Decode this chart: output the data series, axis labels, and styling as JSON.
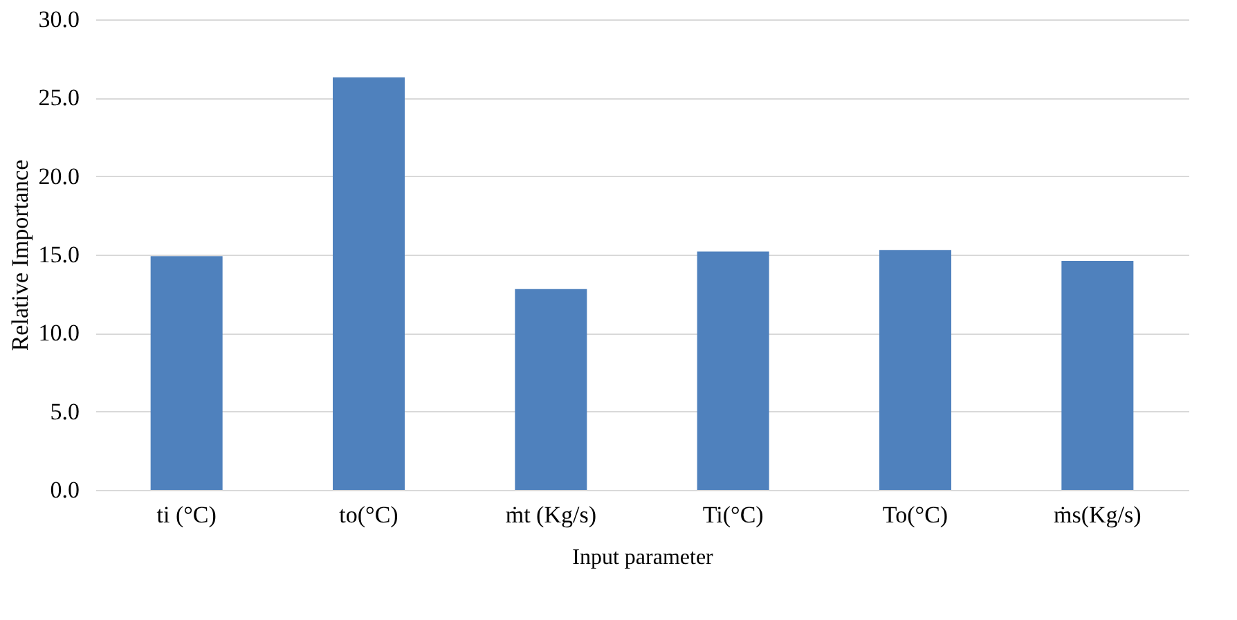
{
  "chart_data": {
    "type": "bar",
    "xlabel": "Input parameter",
    "ylabel": "Relative Importance",
    "categories": [
      "ti (°C)",
      "to(°C)",
      "ṁt (Kg/s)",
      "Ti(°C)",
      "To(°C)",
      "ṁs(Kg/s)"
    ],
    "values": [
      14.9,
      26.3,
      12.8,
      15.2,
      15.3,
      14.6
    ],
    "color": "#4f81bd",
    "ylim": [
      0,
      30
    ],
    "yticks": [
      {
        "value": 0,
        "label": "0.0"
      },
      {
        "value": 5,
        "label": "5.0"
      },
      {
        "value": 10,
        "label": "10.0"
      },
      {
        "value": 15,
        "label": "15.0"
      },
      {
        "value": 20,
        "label": "20.0"
      },
      {
        "value": 25,
        "label": "25.0"
      },
      {
        "value": 30,
        "label": "30.0"
      }
    ],
    "grid": "y"
  }
}
